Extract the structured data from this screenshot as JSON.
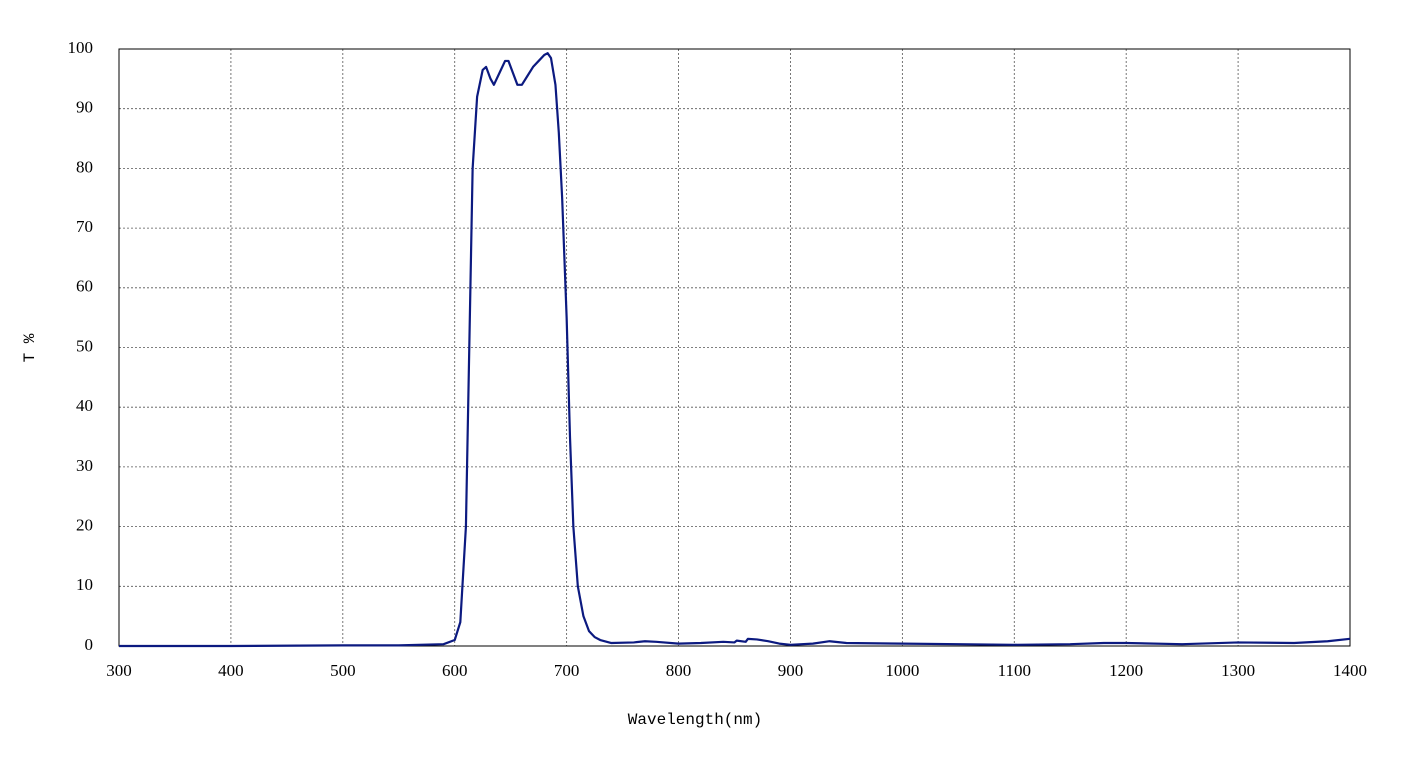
{
  "chart_data": {
    "type": "line",
    "xlabel": "Wavelength(nm)",
    "ylabel": "T %",
    "x": [
      300,
      400,
      500,
      550,
      590,
      600,
      605,
      610,
      613,
      616,
      620,
      625,
      628,
      632,
      635,
      640,
      645,
      648,
      652,
      656,
      660,
      665,
      670,
      675,
      680,
      683,
      686,
      690,
      693,
      696,
      700,
      703,
      706,
      710,
      715,
      720,
      725,
      730,
      740,
      760,
      770,
      780,
      800,
      820,
      840,
      850,
      852,
      860,
      862,
      870,
      880,
      890,
      900,
      920,
      935,
      950,
      1000,
      1050,
      1100,
      1150,
      1180,
      1200,
      1250,
      1300,
      1350,
      1380,
      1400
    ],
    "values": [
      0,
      0,
      0.1,
      0.1,
      0.3,
      1,
      4,
      20,
      50,
      80,
      92,
      96.5,
      97,
      95,
      94,
      96,
      98,
      98,
      96,
      94,
      94,
      95.5,
      97,
      98,
      99,
      99.3,
      98.5,
      94,
      86,
      75,
      55,
      35,
      20,
      10,
      5,
      2.5,
      1.5,
      1,
      0.5,
      0.6,
      0.8,
      0.7,
      0.4,
      0.5,
      0.7,
      0.6,
      0.9,
      0.7,
      1.2,
      1.1,
      0.8,
      0.4,
      0.2,
      0.4,
      0.8,
      0.5,
      0.4,
      0.3,
      0.2,
      0.3,
      0.5,
      0.5,
      0.3,
      0.6,
      0.5,
      0.8,
      1.2
    ],
    "color": "#0c1a80",
    "xlim": [
      300,
      1400
    ],
    "ylim": [
      0,
      100
    ],
    "xticks": [
      300,
      400,
      500,
      600,
      700,
      800,
      900,
      1000,
      1100,
      1200,
      1300,
      1400
    ],
    "yticks": [
      0,
      10,
      20,
      30,
      40,
      50,
      60,
      70,
      80,
      90,
      100
    ],
    "grid": true
  }
}
